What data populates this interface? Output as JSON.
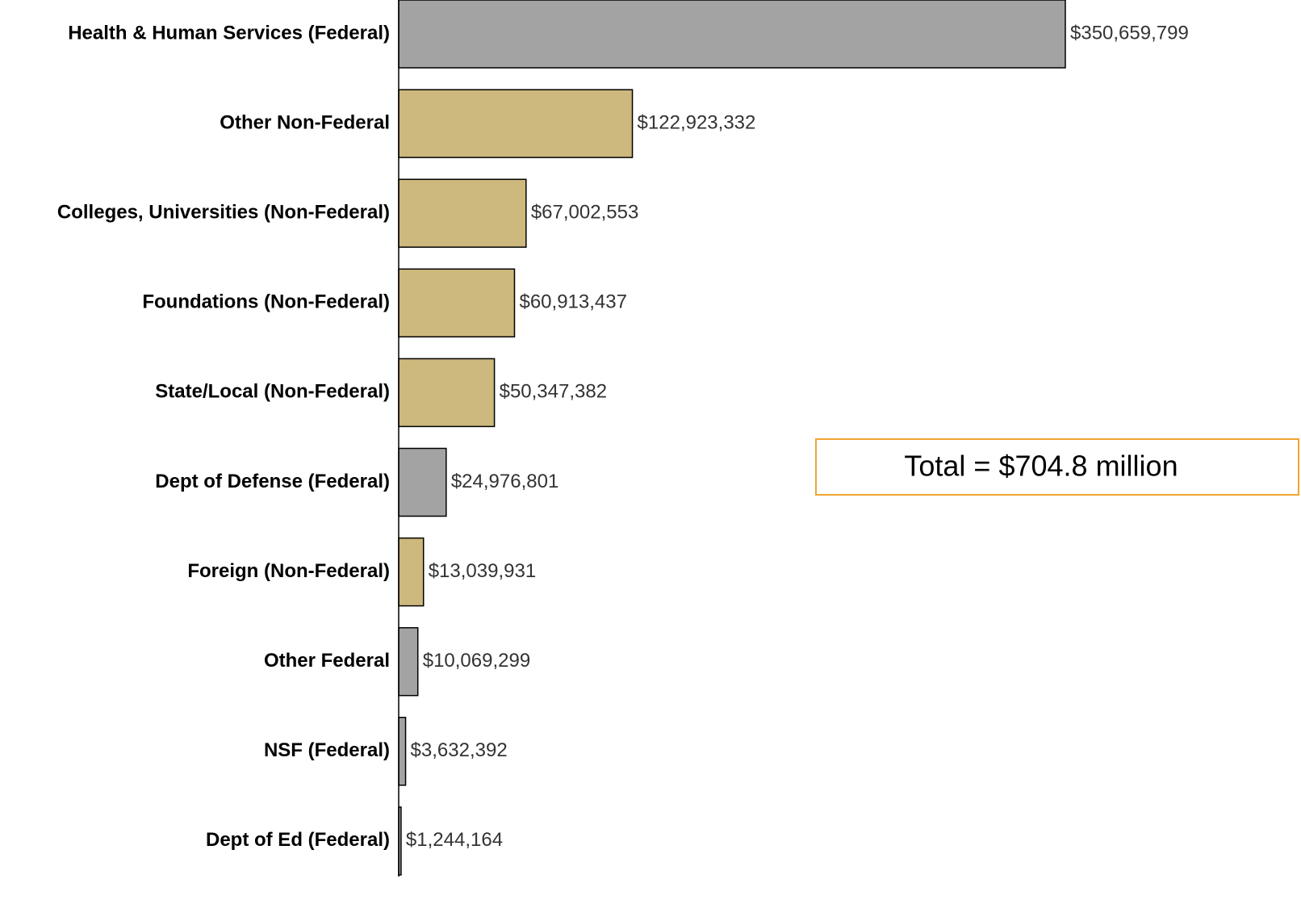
{
  "chart_data": {
    "type": "hbar",
    "categories": [
      "Health & Human Services (Federal)",
      "Other Non-Federal",
      "Colleges, Universities (Non-Federal)",
      "Foundations (Non-Federal)",
      "State/Local (Non-Federal)",
      "Dept of Defense (Federal)",
      "Foreign (Non-Federal)",
      "Other Federal",
      "NSF (Federal)",
      "Dept of Ed (Federal)"
    ],
    "values": [
      350659799,
      122923332,
      67002553,
      60913437,
      50347382,
      24976801,
      13039931,
      10069299,
      3632392,
      1244164
    ],
    "value_labels": [
      "$350,659,799",
      "$122,923,332",
      "$67,002,553",
      "$60,913,437",
      "$50,347,382",
      "$24,976,801",
      "$13,039,931",
      "$10,069,299",
      "$3,632,392",
      "$1,244,164"
    ],
    "colors": [
      "#a3a3a3",
      "#cdb87d",
      "#cdb87d",
      "#cdb87d",
      "#cdb87d",
      "#a3a3a3",
      "#cdb87d",
      "#a3a3a3",
      "#a3a3a3",
      "#a3a3a3"
    ],
    "annotation": "Total = $704.8 million"
  }
}
